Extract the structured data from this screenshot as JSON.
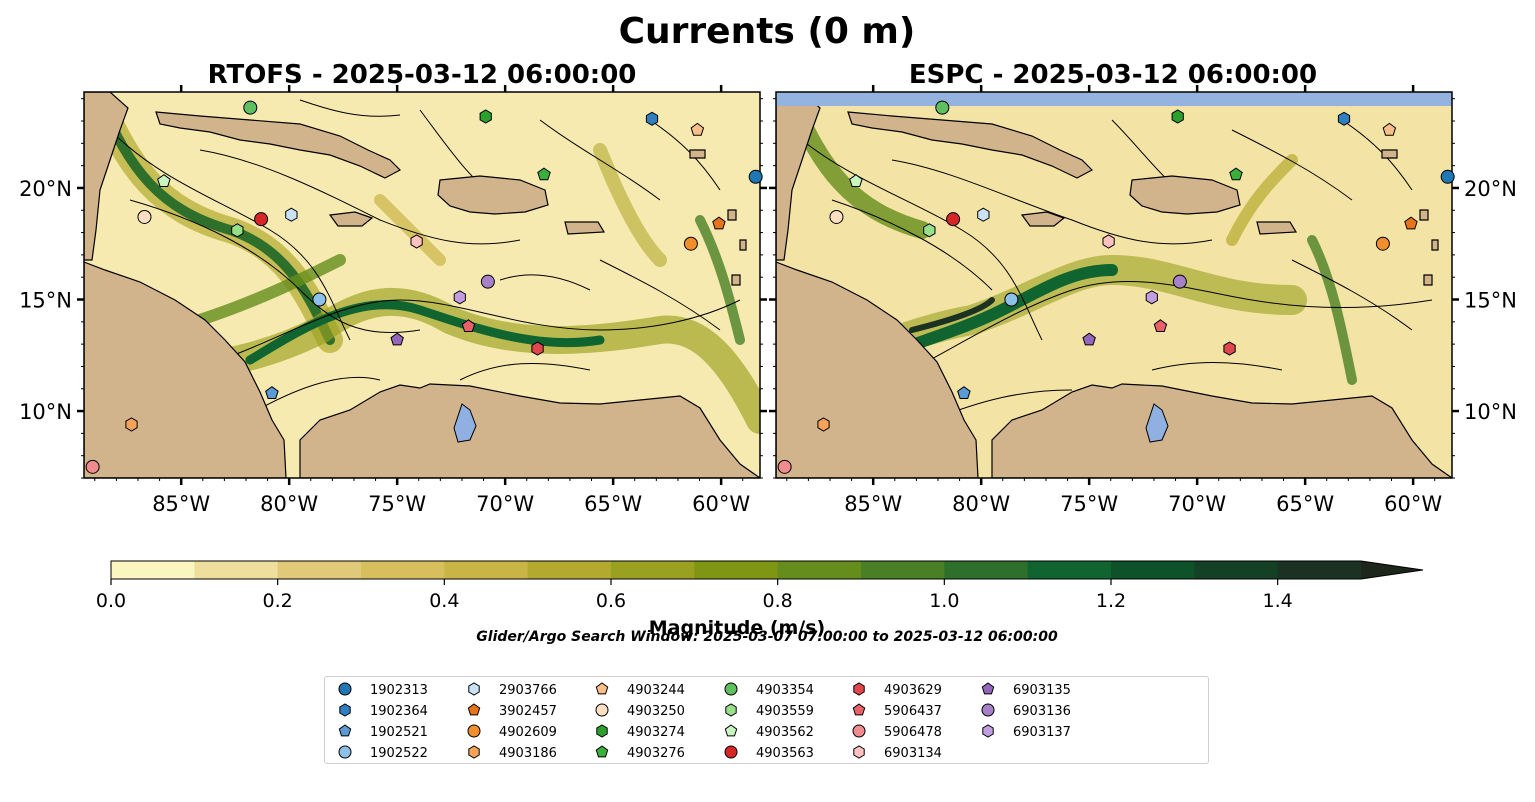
{
  "title": "Currents (0 m)",
  "panels": [
    {
      "title": "RTOFS - 2025-03-12 06:00:00"
    },
    {
      "title": "ESPC - 2025-03-12 06:00:00"
    }
  ],
  "colorbar": {
    "label": "Magnitude (m/s)",
    "min": 0.0,
    "max": 1.5,
    "step": 0.1,
    "ticks": [
      "0.0",
      "0.2",
      "0.4",
      "0.6",
      "0.8",
      "1.0",
      "1.2",
      "1.4"
    ],
    "tick_values": [
      0.0,
      0.2,
      0.4,
      0.6,
      0.8,
      1.0,
      1.2,
      1.4
    ],
    "colors": [
      "#fbf5bf",
      "#efdf9d",
      "#e1c97a",
      "#d8bf5e",
      "#c9b446",
      "#b3a92f",
      "#9aa01f",
      "#7f9614",
      "#658d1b",
      "#4a7f25",
      "#2e702b",
      "#0f6430",
      "#0d5229",
      "#144025",
      "#1b3222",
      "#1d261b"
    ]
  },
  "search_window": "Glider/Argo Search Window: 2025-03-07 07:00:00 to 2025-03-12 06:00:00",
  "colors": {
    "land": "#d2b48c",
    "ocean_nodata": "#94b4df",
    "lake": "#8fb0e0"
  },
  "chart_data": [
    {
      "type": "map",
      "title": "RTOFS - 2025-03-12 06:00:00",
      "lon_range": [
        -89.5,
        -58.2
      ],
      "lat_range": [
        7.0,
        24.3
      ],
      "x_ticks": [
        "85°W",
        "80°W",
        "75°W",
        "70°W",
        "65°W",
        "60°W"
      ],
      "x_tick_values": [
        -85,
        -80,
        -75,
        -70,
        -65,
        -60
      ],
      "y_ticks": [
        "10°N",
        "15°N",
        "20°N"
      ],
      "y_tick_values": [
        10,
        15,
        20
      ]
    },
    {
      "type": "map",
      "title": "ESPC - 2025-03-12 06:00:00",
      "lon_range": [
        -89.5,
        -58.2
      ],
      "lat_range": [
        7.0,
        24.3
      ],
      "x_ticks": [
        "85°W",
        "80°W",
        "75°W",
        "70°W",
        "65°W",
        "60°W"
      ],
      "x_tick_values": [
        -85,
        -80,
        -75,
        -70,
        -65,
        -60
      ],
      "y_ticks": [
        "10°N",
        "15°N",
        "20°N"
      ],
      "y_tick_values": [
        10,
        15,
        20
      ]
    }
  ],
  "floats": [
    {
      "id": "1902313",
      "marker": "circle",
      "color": "#1f77b4",
      "lon": -58.4,
      "lat": 20.5
    },
    {
      "id": "1902364",
      "marker": "hexagon",
      "color": "#2f7fc1",
      "lon": -63.2,
      "lat": 23.1
    },
    {
      "id": "1902521",
      "marker": "pentagon",
      "color": "#5a9bd5",
      "lon": -80.8,
      "lat": 10.8
    },
    {
      "id": "1902522",
      "marker": "circle",
      "color": "#8ec1e8",
      "lon": -78.6,
      "lat": 15.0
    },
    {
      "id": "2903766",
      "marker": "hexagon",
      "color": "#c9e2f5",
      "lon": -79.9,
      "lat": 18.8
    },
    {
      "id": "3902457",
      "marker": "pentagon",
      "color": "#e8741a",
      "lon": -60.1,
      "lat": 18.4
    },
    {
      "id": "4902609",
      "marker": "circle",
      "color": "#f28e2b",
      "lon": -61.4,
      "lat": 17.5
    },
    {
      "id": "4903186",
      "marker": "hexagon",
      "color": "#f6a35a",
      "lon": -87.3,
      "lat": 9.4
    },
    {
      "id": "4903244",
      "marker": "pentagon",
      "color": "#fbc089",
      "lon": -61.1,
      "lat": 22.6
    },
    {
      "id": "4903250",
      "marker": "circle",
      "color": "#fde0c4",
      "lon": -86.7,
      "lat": 18.7
    },
    {
      "id": "4903274",
      "marker": "hexagon",
      "color": "#2ca02c",
      "lon": -70.9,
      "lat": 23.2
    },
    {
      "id": "4903276",
      "marker": "pentagon",
      "color": "#3ab03a",
      "lon": -68.2,
      "lat": 20.6
    },
    {
      "id": "4903354",
      "marker": "circle",
      "color": "#5fc05f",
      "lon": -81.8,
      "lat": 23.6
    },
    {
      "id": "4903559",
      "marker": "hexagon",
      "color": "#98df8a",
      "lon": -82.4,
      "lat": 18.1
    },
    {
      "id": "4903562",
      "marker": "pentagon",
      "color": "#c8f5c0",
      "lon": -85.8,
      "lat": 20.3
    },
    {
      "id": "4903563",
      "marker": "circle",
      "color": "#d62728",
      "lon": -81.3,
      "lat": 18.6
    },
    {
      "id": "4903629",
      "marker": "hexagon",
      "color": "#e0474c",
      "lon": -68.5,
      "lat": 12.8
    },
    {
      "id": "5906437",
      "marker": "pentagon",
      "color": "#e8606a",
      "lon": -71.7,
      "lat": 13.8
    },
    {
      "id": "5906478",
      "marker": "circle",
      "color": "#f08c8f",
      "lon": -89.1,
      "lat": 7.5
    },
    {
      "id": "6903134",
      "marker": "hexagon",
      "color": "#ffc2c0",
      "lon": -74.1,
      "lat": 17.6
    },
    {
      "id": "6903135",
      "marker": "pentagon",
      "color": "#9467bd",
      "lon": -75.0,
      "lat": 13.2
    },
    {
      "id": "6903136",
      "marker": "circle",
      "color": "#a781c8",
      "lon": -70.8,
      "lat": 15.8
    },
    {
      "id": "6903137",
      "marker": "hexagon",
      "color": "#c29ee0",
      "lon": -72.1,
      "lat": 15.1
    }
  ]
}
